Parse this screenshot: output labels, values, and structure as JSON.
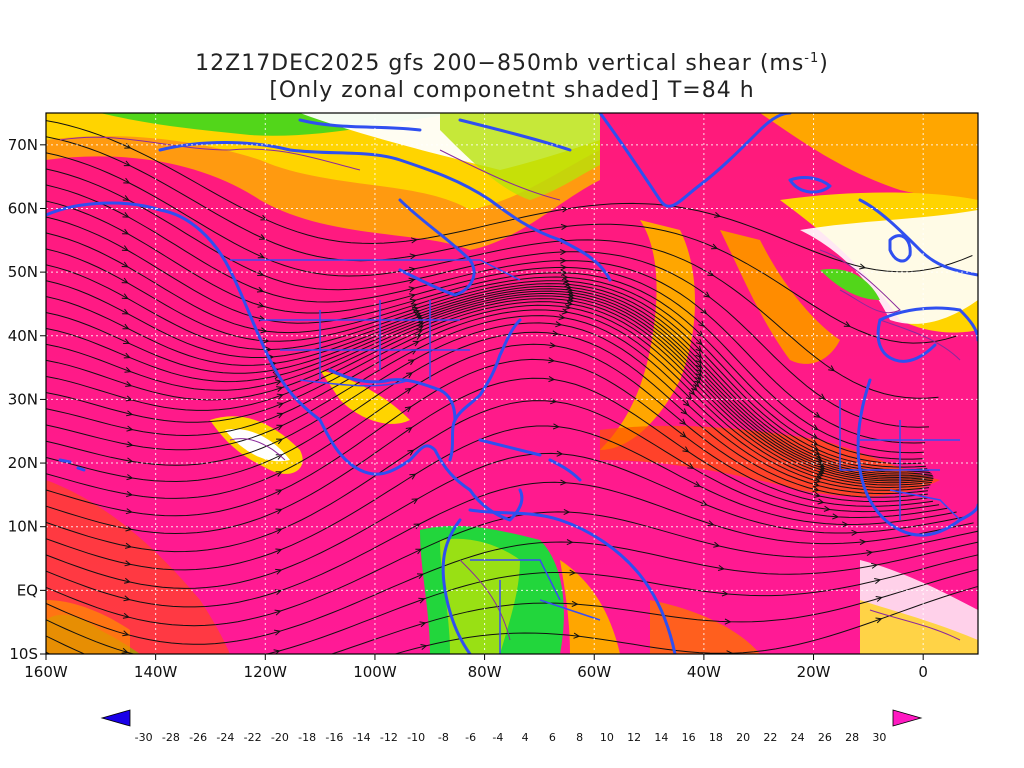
{
  "title": {
    "line1_prefix": "12Z17DEC2025 gfs 200−850mb vertical shear (ms",
    "line1_sup": "-1",
    "line1_suffix": ")",
    "line2": "[Only zonal componetnt shaded] T=84 h"
  },
  "map": {
    "lon_range": [
      -160,
      10
    ],
    "lat_range": [
      -10,
      75
    ],
    "x_ticks": [
      {
        "lon": -160,
        "label": "160W"
      },
      {
        "lon": -140,
        "label": "140W"
      },
      {
        "lon": -120,
        "label": "120W"
      },
      {
        "lon": -100,
        "label": "100W"
      },
      {
        "lon": -80,
        "label": "80W"
      },
      {
        "lon": -60,
        "label": "60W"
      },
      {
        "lon": -40,
        "label": "40W"
      },
      {
        "lon": -20,
        "label": "20W"
      },
      {
        "lon": 0,
        "label": "0"
      }
    ],
    "y_ticks": [
      {
        "lat": 70,
        "label": "70N"
      },
      {
        "lat": 60,
        "label": "60N"
      },
      {
        "lat": 50,
        "label": "50N"
      },
      {
        "lat": 40,
        "label": "40N"
      },
      {
        "lat": 30,
        "label": "30N"
      },
      {
        "lat": 20,
        "label": "20N"
      },
      {
        "lat": 10,
        "label": "10N"
      },
      {
        "lat": 0,
        "label": "EQ"
      },
      {
        "lat": -10,
        "label": "10S"
      }
    ],
    "gridlines": true
  },
  "colorbar": {
    "labels": [
      "-30",
      "-28",
      "-26",
      "-24",
      "-22",
      "-20",
      "-18",
      "-16",
      "-14",
      "-12",
      "-10",
      "-8",
      "-6",
      "-4",
      "4",
      "6",
      "8",
      "10",
      "12",
      "14",
      "16",
      "18",
      "20",
      "22",
      "24",
      "26",
      "28",
      "30"
    ],
    "colors": [
      "#1a00e8",
      "#0a28f0",
      "#0a55f2",
      "#0a7ef4",
      "#09a6f4",
      "#07c8f2",
      "#06e3e6",
      "#05ecc4",
      "#06e39a",
      "#0adb6c",
      "#22d63c",
      "#52d61a",
      "#86d90e",
      "#b8e20a",
      "#ffffff",
      "#fff200",
      "#ffd900",
      "#ffc000",
      "#ffa600",
      "#ff8c00",
      "#ff7000",
      "#ff5400",
      "#ff3400",
      "#ff1428",
      "#ff1a5a",
      "#ff1a84",
      "#ff1aa6",
      "#ff1ac2"
    ],
    "low_color": "#1a00e8",
    "high_color": "#ff1ac2"
  }
}
